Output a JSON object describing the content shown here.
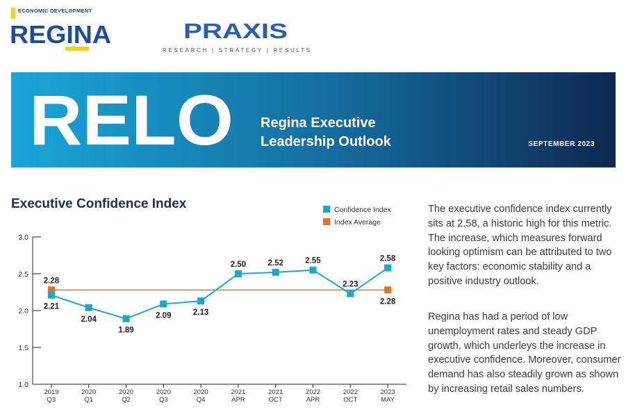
{
  "header": {
    "regina_tag": "ECONOMIC DEVELOPMENT",
    "regina_name": "REGINA",
    "praxis_name": "PRAXIS",
    "praxis_tagline": "RESEARCH | STRATEGY | RESULTS"
  },
  "banner": {
    "title": "RELO",
    "subtitle_lines": [
      "Regina Executive",
      "Leadership Outlook"
    ],
    "date": "SEPTEMBER 2023"
  },
  "chart_data": {
    "type": "line",
    "title": "Executive Confidence Index",
    "categories": [
      [
        "2019",
        "Q3"
      ],
      [
        "2020",
        "Q1"
      ],
      [
        "2020",
        "Q2"
      ],
      [
        "2020",
        "Q3"
      ],
      [
        "2020",
        "Q4"
      ],
      [
        "2021",
        "APR"
      ],
      [
        "2021",
        "OCT"
      ],
      [
        "2022",
        "APR"
      ],
      [
        "2022",
        "OCT"
      ],
      [
        "2023",
        "MAY"
      ]
    ],
    "series": [
      {
        "name": "Confidence Index",
        "color": "#1ca7cf",
        "values": [
          2.21,
          2.04,
          1.89,
          2.09,
          2.13,
          2.5,
          2.52,
          2.55,
          2.23,
          2.58
        ],
        "value_labels": [
          "2.21",
          "2.04",
          "1.89",
          "2.09",
          "2.13",
          "2.50",
          "2.52",
          "2.55",
          "2.23",
          "2.58"
        ]
      },
      {
        "name": "Index Average",
        "color": "#e8702a",
        "values": [
          2.28,
          2.28,
          2.28,
          2.28,
          2.28,
          2.28,
          2.28,
          2.28,
          2.28,
          2.28
        ],
        "value_labels": [
          "2.28",
          null,
          null,
          null,
          null,
          null,
          null,
          null,
          null,
          "2.28"
        ]
      }
    ],
    "ylim": [
      1,
      3
    ],
    "yticks": [
      {
        "value": 1,
        "label": "1.0"
      },
      {
        "value": 1.5,
        "label": "1.5"
      },
      {
        "value": 2,
        "label": "2.0"
      },
      {
        "value": 2.5,
        "label": "2.5"
      },
      {
        "value": 3,
        "label": "3.0"
      }
    ],
    "grid": false
  },
  "paragraphs": [
    "The executive confidence index currently sits at 2.58, a historic high for this metric. The increase, which measures forward looking optimism can be attributed to two key factors: economic stability and a positive industry outlook.",
    "Regina has had a period of low unemployment rates and steady GDP growth, which underleys the increase in executive confidence. Moreover, consumer demand has also steadily grown as shown by increasing retail sales numbers."
  ]
}
